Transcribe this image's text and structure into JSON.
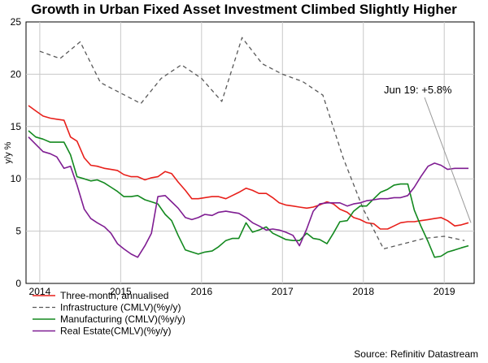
{
  "chart_data": {
    "type": "line",
    "title": "Growth in Urban Fixed Asset Investment Climbed Slightly Higher",
    "ylabel": "y/y %",
    "xlabel": "",
    "ylim": [
      0,
      25
    ],
    "xlim": [
      2013.83,
      2019.37
    ],
    "yticks": [
      "0",
      "5",
      "10",
      "15",
      "20",
      "25"
    ],
    "xtick_labels": [
      "2014",
      "2015",
      "2016",
      "2017",
      "2018",
      "2019"
    ],
    "xtick_values": [
      2014.0,
      2015.0,
      2016.0,
      2017.0,
      2018.0,
      2019.0
    ],
    "grid": true,
    "legend_position": "bottom-left",
    "series": [
      {
        "name": "Three-month, annualised",
        "color": "#e8201b",
        "style": "solid",
        "x": [
          2013.86,
          2013.95,
          2014.04,
          2014.13,
          2014.21,
          2014.3,
          2014.38,
          2014.46,
          2014.55,
          2014.63,
          2014.71,
          2014.8,
          2014.88,
          2014.96,
          2015.04,
          2015.13,
          2015.21,
          2015.3,
          2015.38,
          2015.46,
          2015.55,
          2015.63,
          2015.71,
          2015.8,
          2015.88,
          2015.96,
          2016.04,
          2016.13,
          2016.21,
          2016.3,
          2016.38,
          2016.46,
          2016.55,
          2016.63,
          2016.71,
          2016.8,
          2016.88,
          2016.96,
          2017.04,
          2017.13,
          2017.21,
          2017.3,
          2017.38,
          2017.46,
          2017.55,
          2017.63,
          2017.71,
          2017.8,
          2017.88,
          2017.96,
          2018.04,
          2018.13,
          2018.21,
          2018.3,
          2018.38,
          2018.46,
          2018.55,
          2018.63,
          2018.71,
          2018.8,
          2018.88,
          2018.96,
          2019.04,
          2019.13,
          2019.21,
          2019.3
        ],
        "values": [
          17.0,
          16.5,
          16.0,
          15.8,
          15.7,
          15.6,
          14.0,
          13.6,
          12.0,
          11.3,
          11.2,
          11.0,
          10.9,
          10.8,
          10.4,
          10.2,
          10.2,
          9.9,
          10.1,
          10.2,
          10.7,
          10.5,
          9.7,
          8.9,
          8.1,
          8.1,
          8.2,
          8.3,
          8.3,
          8.1,
          8.4,
          8.7,
          9.1,
          8.9,
          8.6,
          8.6,
          8.2,
          7.7,
          7.5,
          7.4,
          7.3,
          7.2,
          7.3,
          7.5,
          7.8,
          7.6,
          7.1,
          6.8,
          6.3,
          6.1,
          5.8,
          5.7,
          5.2,
          5.2,
          5.5,
          5.8,
          5.9,
          5.9,
          6.0,
          6.1,
          6.2,
          6.3,
          6.0,
          5.5,
          5.6,
          5.8
        ]
      },
      {
        "name": "Infrastructure (CMLV)(%y/y)",
        "color": "#595959",
        "style": "dashed",
        "x": [
          2014.0,
          2014.25,
          2014.5,
          2014.75,
          2015.25,
          2015.5,
          2015.75,
          2016.0,
          2016.25,
          2016.5,
          2016.75,
          2017.0,
          2017.25,
          2017.5,
          2017.75,
          2018.0,
          2018.25,
          2018.5,
          2018.75,
          2019.0,
          2019.25
        ],
        "values": [
          22.2,
          21.5,
          23.1,
          19.2,
          17.2,
          19.6,
          20.9,
          19.6,
          17.4,
          23.5,
          21.0,
          20.0,
          19.3,
          18.0,
          12.0,
          7.1,
          3.3,
          3.8,
          4.3,
          4.5,
          4.1
        ]
      },
      {
        "name": "Manufacturing (CMLV)(%y/y)",
        "color": "#13891f",
        "style": "solid",
        "x": [
          2013.86,
          2013.95,
          2014.04,
          2014.13,
          2014.21,
          2014.3,
          2014.38,
          2014.46,
          2014.55,
          2014.63,
          2014.71,
          2014.8,
          2014.88,
          2014.96,
          2015.04,
          2015.13,
          2015.21,
          2015.3,
          2015.38,
          2015.46,
          2015.55,
          2015.63,
          2015.71,
          2015.8,
          2015.88,
          2015.96,
          2016.04,
          2016.13,
          2016.21,
          2016.3,
          2016.38,
          2016.46,
          2016.55,
          2016.63,
          2016.71,
          2016.8,
          2016.88,
          2016.96,
          2017.04,
          2017.13,
          2017.21,
          2017.3,
          2017.38,
          2017.46,
          2017.55,
          2017.63,
          2017.71,
          2017.8,
          2017.88,
          2017.96,
          2018.04,
          2018.13,
          2018.21,
          2018.3,
          2018.38,
          2018.46,
          2018.55,
          2018.63,
          2018.71,
          2018.8,
          2018.88,
          2018.96,
          2019.04,
          2019.13,
          2019.21,
          2019.3
        ],
        "values": [
          14.6,
          14.0,
          13.8,
          13.5,
          13.5,
          13.5,
          12.3,
          10.2,
          10.0,
          9.8,
          9.9,
          9.6,
          9.2,
          8.8,
          8.3,
          8.3,
          8.4,
          8.0,
          7.8,
          7.6,
          6.6,
          6.0,
          4.6,
          3.2,
          3.0,
          2.8,
          3.0,
          3.1,
          3.5,
          4.1,
          4.3,
          4.3,
          5.8,
          4.9,
          5.1,
          5.4,
          4.8,
          4.5,
          4.2,
          4.1,
          4.1,
          4.8,
          4.3,
          4.2,
          3.8,
          4.8,
          5.9,
          6.0,
          6.9,
          7.4,
          7.4,
          8.1,
          8.7,
          9.0,
          9.4,
          9.5,
          9.5,
          7.0,
          5.5,
          4.0,
          2.5,
          2.6,
          3.0,
          3.2,
          3.4,
          3.6
        ]
      },
      {
        "name": "Real Estate(CMLV)(%y/y)",
        "color": "#7f1d92",
        "style": "solid",
        "x": [
          2013.86,
          2013.95,
          2014.04,
          2014.13,
          2014.21,
          2014.3,
          2014.38,
          2014.46,
          2014.55,
          2014.63,
          2014.71,
          2014.8,
          2014.88,
          2014.96,
          2015.04,
          2015.13,
          2015.21,
          2015.3,
          2015.38,
          2015.46,
          2015.55,
          2015.63,
          2015.71,
          2015.8,
          2015.88,
          2015.96,
          2016.04,
          2016.13,
          2016.21,
          2016.3,
          2016.38,
          2016.46,
          2016.55,
          2016.63,
          2016.71,
          2016.8,
          2016.88,
          2016.96,
          2017.04,
          2017.13,
          2017.21,
          2017.3,
          2017.38,
          2017.46,
          2017.55,
          2017.63,
          2017.71,
          2017.8,
          2017.88,
          2017.96,
          2018.04,
          2018.13,
          2018.21,
          2018.3,
          2018.38,
          2018.46,
          2018.55,
          2018.63,
          2018.71,
          2018.8,
          2018.88,
          2018.96,
          2019.04,
          2019.13,
          2019.21,
          2019.3
        ],
        "values": [
          14.0,
          13.3,
          12.6,
          12.4,
          12.1,
          11.0,
          11.2,
          9.4,
          7.1,
          6.2,
          5.8,
          5.4,
          4.8,
          3.8,
          3.3,
          2.8,
          2.5,
          3.6,
          4.8,
          8.3,
          8.4,
          7.8,
          7.2,
          6.3,
          6.1,
          6.3,
          6.6,
          6.5,
          6.8,
          6.9,
          6.8,
          6.7,
          6.3,
          5.8,
          5.5,
          5.1,
          5.2,
          5.1,
          4.9,
          4.6,
          3.6,
          5.2,
          6.9,
          7.6,
          7.7,
          7.7,
          7.7,
          7.4,
          7.6,
          7.7,
          7.9,
          8.0,
          8.1,
          8.1,
          8.2,
          8.2,
          8.4,
          9.2,
          10.2,
          11.2,
          11.5,
          11.3,
          10.9,
          11.0,
          11.0,
          11.0
        ]
      }
    ],
    "annotation": {
      "text": "Jun 19: +5.8%",
      "target_x": 2019.33,
      "target_y": 5.8
    },
    "source": "Source: Refinitiv Datastream"
  }
}
